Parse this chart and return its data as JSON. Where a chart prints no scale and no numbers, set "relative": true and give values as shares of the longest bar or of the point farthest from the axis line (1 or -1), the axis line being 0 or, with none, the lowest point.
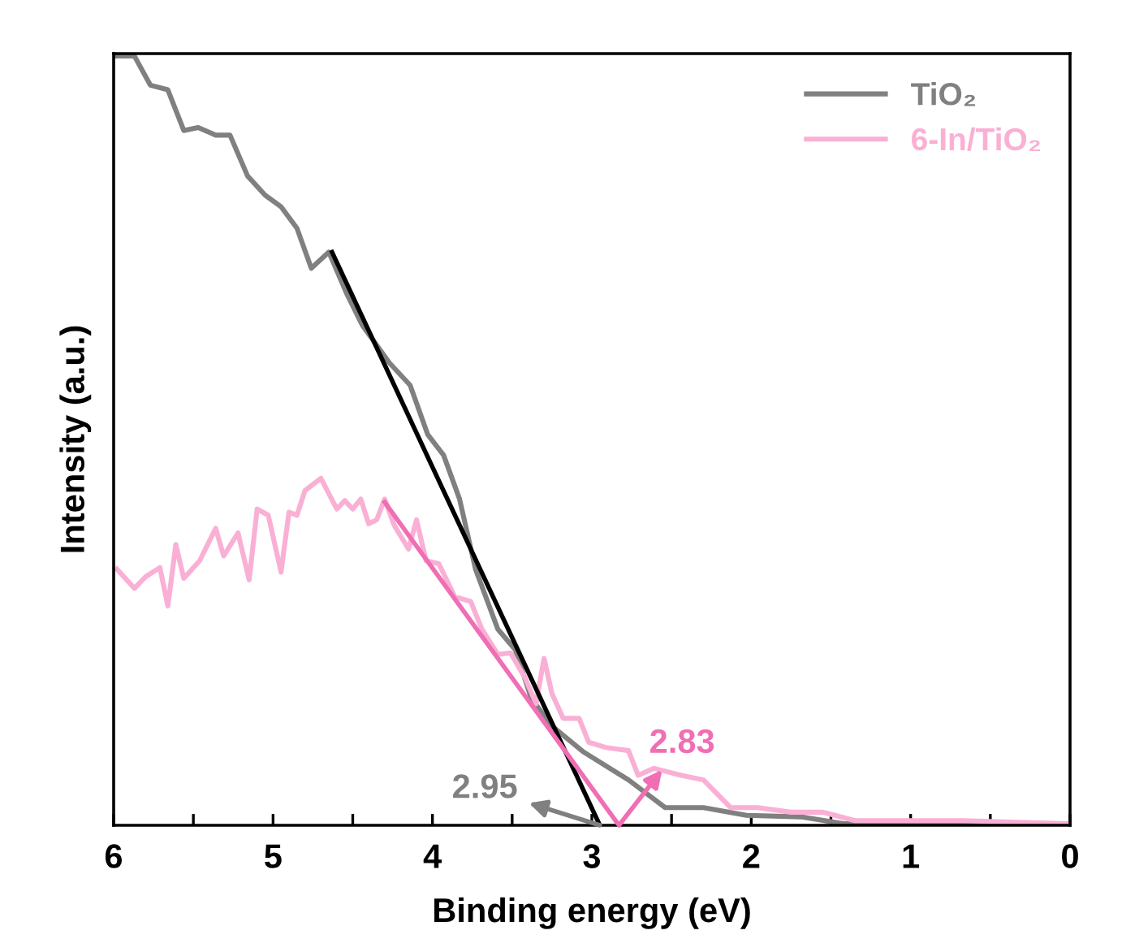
{
  "chart_data": {
    "type": "line",
    "relative": true,
    "xlabel": "Binding energy (eV)",
    "ylabel": "Intensity (a.u.)",
    "xlim": [
      6,
      0
    ],
    "xticks": [
      6,
      {
        "value": 5.5,
        "label": null
      },
      5,
      {
        "value": 4.5,
        "label": null
      },
      4,
      {
        "value": 3.5,
        "label": null
      },
      3,
      {
        "value": 2.5,
        "label": null
      },
      2,
      {
        "value": 1.5,
        "label": null
      },
      1,
      {
        "value": 0.5,
        "label": null
      },
      0
    ],
    "legend": "top right",
    "grid": false,
    "series": [
      {
        "name": "TiO₂",
        "color": "#808080",
        "x": [
          5.98,
          5.87,
          5.77,
          5.66,
          5.56,
          5.47,
          5.36,
          5.27,
          5.16,
          5.05,
          4.95,
          4.85,
          4.76,
          4.65,
          4.54,
          4.44,
          4.27,
          4.14,
          4.03,
          3.93,
          3.83,
          3.73,
          3.59,
          3.48,
          3.38,
          3.25,
          3.05,
          2.77,
          2.54,
          2.3,
          2.03,
          1.69,
          1.42,
          1.01,
          0.4,
          0.0
        ],
        "values": [
          1.0,
          1.0,
          0.962,
          0.956,
          0.903,
          0.907,
          0.897,
          0.897,
          0.844,
          0.819,
          0.804,
          0.776,
          0.724,
          0.745,
          0.692,
          0.65,
          0.601,
          0.572,
          0.508,
          0.481,
          0.424,
          0.333,
          0.255,
          0.228,
          0.165,
          0.129,
          0.095,
          0.059,
          0.023,
          0.023,
          0.013,
          0.011,
          0.002,
          0.002,
          0.0,
          0.0
        ]
      },
      {
        "name": "6-In/TiO₂",
        "color": "#f9b0d4",
        "x": [
          5.98,
          5.87,
          5.8,
          5.71,
          5.66,
          5.61,
          5.56,
          5.46,
          5.36,
          5.31,
          5.22,
          5.15,
          5.1,
          5.03,
          4.95,
          4.9,
          4.85,
          4.8,
          4.7,
          4.6,
          4.55,
          4.5,
          4.45,
          4.4,
          4.35,
          4.3,
          4.24,
          4.15,
          4.1,
          4.04,
          3.96,
          3.86,
          3.76,
          3.69,
          3.59,
          3.51,
          3.42,
          3.35,
          3.3,
          3.25,
          3.18,
          3.08,
          3.02,
          2.91,
          2.77,
          2.71,
          2.61,
          2.44,
          2.3,
          2.13,
          1.96,
          1.75,
          1.55,
          1.35,
          1.01,
          0.67,
          0.33,
          0.0
        ],
        "values": [
          0.333,
          0.308,
          0.323,
          0.335,
          0.285,
          0.365,
          0.321,
          0.344,
          0.386,
          0.35,
          0.38,
          0.319,
          0.411,
          0.403,
          0.329,
          0.407,
          0.403,
          0.435,
          0.451,
          0.411,
          0.422,
          0.411,
          0.424,
          0.392,
          0.397,
          0.424,
          0.39,
          0.359,
          0.397,
          0.344,
          0.34,
          0.297,
          0.291,
          0.255,
          0.222,
          0.224,
          0.192,
          0.158,
          0.217,
          0.171,
          0.139,
          0.139,
          0.108,
          0.101,
          0.097,
          0.065,
          0.074,
          0.065,
          0.059,
          0.023,
          0.023,
          0.017,
          0.017,
          0.006,
          0.006,
          0.006,
          0.004,
          0.002
        ]
      },
      {
        "color": "#000000",
        "x": [
          4.63,
          2.95
        ],
        "values": [
          0.745,
          0.0
        ]
      },
      {
        "color": "#f06eb4",
        "x": [
          4.3,
          2.83
        ],
        "values": [
          0.42,
          0.0
        ]
      }
    ],
    "annotations": [
      {
        "text": "2.95",
        "x": 2.95,
        "y": 0.0
      },
      {
        "text": "2.83",
        "x": 2.83,
        "y": 0.0
      }
    ]
  }
}
